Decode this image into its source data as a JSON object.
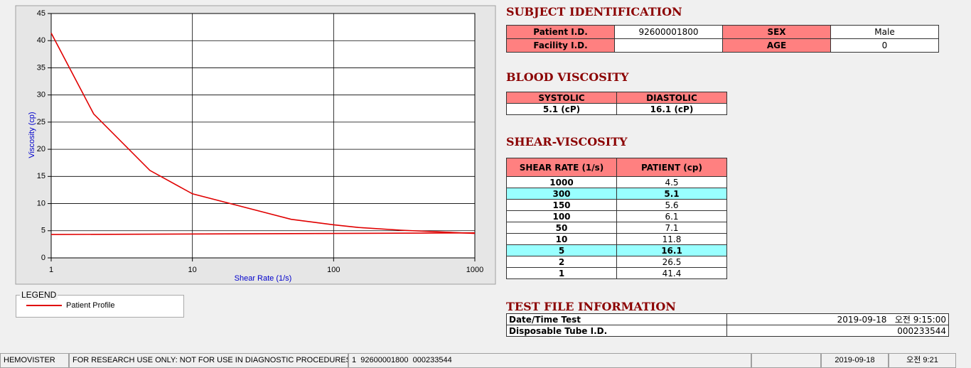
{
  "chart_data": {
    "type": "line",
    "x_label": "Shear Rate (1/s)",
    "y_label": "Viscosity (cp)",
    "x_scale": "log",
    "xlim": [
      1,
      1000
    ],
    "xticks": [
      1,
      10,
      100,
      1000
    ],
    "ylim": [
      0,
      45
    ],
    "yticks": [
      0,
      5,
      10,
      15,
      20,
      25,
      30,
      35,
      40,
      45
    ],
    "grid": true,
    "legend_title": "LEGEND",
    "series": [
      {
        "name": "Patient Profile",
        "color": "#e00000",
        "x": [
          1,
          2,
          5,
          10,
          50,
          100,
          150,
          300,
          1000
        ],
        "values": [
          41.4,
          26.5,
          16.1,
          11.8,
          7.1,
          6.1,
          5.6,
          5.1,
          4.5
        ]
      },
      {
        "color": "#e00000",
        "x": [
          1,
          1000
        ],
        "values": [
          4.3,
          4.6
        ]
      }
    ]
  },
  "subject": {
    "title": "SUBJECT IDENTIFICATION",
    "rows": [
      [
        "Patient I.D.",
        "92600001800",
        "SEX",
        "Male"
      ],
      [
        "Facility I.D.",
        null,
        "AGE",
        0
      ]
    ]
  },
  "blood": {
    "title": "BLOOD VISCOSITY",
    "header": [
      "SYSTOLIC",
      "DIASTOLIC"
    ],
    "row": [
      "5.1 (cP)",
      "16.1 (cP)"
    ]
  },
  "shear": {
    "title": "SHEAR-VISCOSITY",
    "header": [
      "SHEAR RATE (1/s)",
      "PATIENT (cp)"
    ],
    "rows": [
      [
        1000,
        4.5
      ],
      [
        300,
        5.1
      ],
      [
        150,
        5.6
      ],
      [
        100,
        6.1
      ],
      [
        50,
        7.1
      ],
      [
        10,
        11.8
      ],
      [
        5,
        16.1
      ],
      [
        2,
        26.5
      ],
      [
        1,
        41.4
      ]
    ],
    "highlight_color": "#99ffff",
    "highlight_rows": [
      1,
      6
    ]
  },
  "test_file": {
    "title": "TEST FILE INFORMATION",
    "rows": [
      [
        "Date/Time Test",
        "2019-09-18   오전 9:15:00"
      ],
      [
        "Disposable Tube I.D.",
        "000233544"
      ]
    ]
  },
  "status_bar": [
    "HEMOVISTER",
    "FOR RESEARCH USE ONLY: NOT FOR USE IN DIAGNOSTIC PROCEDURES",
    "1  92600001800  000233544",
    "2019-09-18",
    "오전 9:21"
  ]
}
